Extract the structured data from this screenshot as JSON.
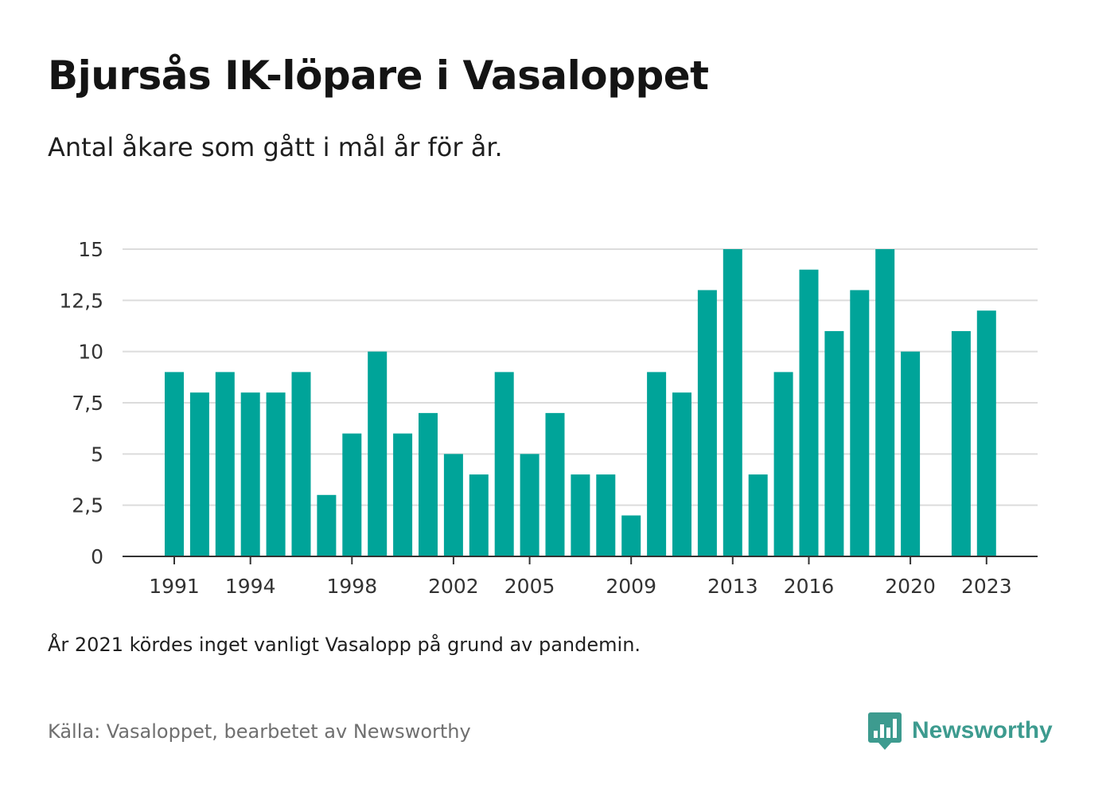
{
  "title": "Bjursås IK-löpare i Vasaloppet",
  "subtitle": "Antal åkare som gått i mål år för år.",
  "note": "År 2021 kördes inget vanligt Vasalopp på grund av pandemin.",
  "source": "Källa: Vasaloppet, bearbetet av Newsworthy",
  "brand": {
    "name": "Newsworthy",
    "icon": "newsworthy-logo-icon",
    "color": "#3d9b8f"
  },
  "chart_data": {
    "type": "bar",
    "categories": [
      "1991",
      "1992",
      "1993",
      "1994",
      "1995",
      "1996",
      "1997",
      "1998",
      "1999",
      "2000",
      "2001",
      "2002",
      "2003",
      "2004",
      "2005",
      "2006",
      "2007",
      "2008",
      "2009",
      "2010",
      "2011",
      "2012",
      "2013",
      "2014",
      "2015",
      "2016",
      "2017",
      "2018",
      "2019",
      "2020",
      "2021",
      "2022",
      "2023"
    ],
    "values": [
      9,
      8,
      9,
      8,
      8,
      9,
      3,
      6,
      10,
      6,
      7,
      5,
      4,
      9,
      5,
      7,
      4,
      4,
      2,
      9,
      8,
      13,
      15,
      4,
      9,
      14,
      11,
      13,
      15,
      10,
      null,
      11,
      12
    ],
    "x_tick_labels": [
      "1991",
      "1994",
      "1998",
      "2002",
      "2005",
      "2009",
      "2013",
      "2016",
      "2020",
      "2023"
    ],
    "y_ticks": [
      0,
      2.5,
      5,
      7.5,
      10,
      12.5,
      15
    ],
    "y_tick_labels": [
      "0",
      "2,5",
      "5",
      "7,5",
      "10",
      "12,5",
      "15"
    ],
    "ylim": [
      0,
      15
    ],
    "xlabel": "",
    "ylabel": "",
    "grid": true,
    "bar_color": "#00a499",
    "grid_color": "#dcdcdc",
    "axis_color": "#333333"
  }
}
